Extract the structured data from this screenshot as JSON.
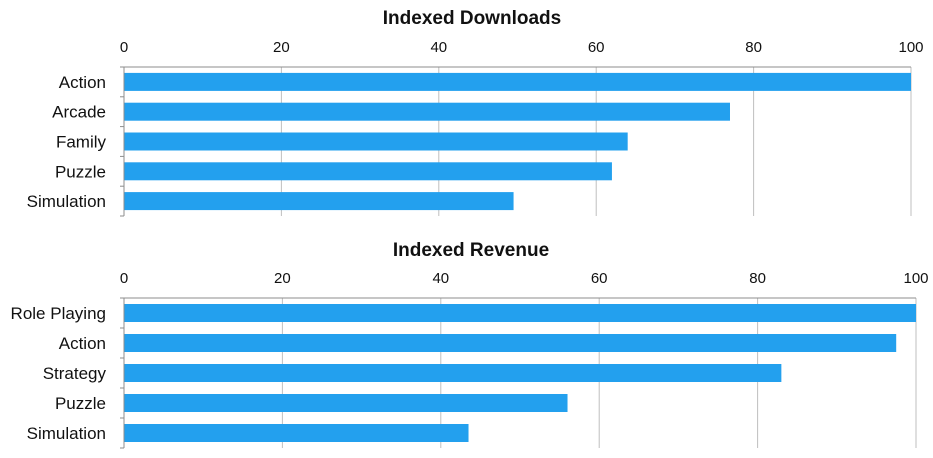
{
  "colors": {
    "bar": "#23a0ee",
    "grid": "#bfbfbf",
    "axis": "#8c8c8c"
  },
  "chart_data": [
    {
      "type": "bar",
      "orientation": "horizontal",
      "title": "Indexed Downloads",
      "categories": [
        "Action",
        "Arcade",
        "Family",
        "Puzzle",
        "Simulation"
      ],
      "values": [
        100,
        77,
        64,
        62,
        49.5
      ],
      "xlim": [
        0,
        100
      ],
      "ticks": [
        "0",
        "20",
        "40",
        "60",
        "80",
        "100"
      ],
      "tick_values": [
        0,
        20,
        40,
        60,
        80,
        100
      ],
      "xaxis_position": "top",
      "grid": true,
      "legend": "none"
    },
    {
      "type": "bar",
      "orientation": "horizontal",
      "title": "Indexed Revenue",
      "categories": [
        "Role Playing",
        "Action",
        "Strategy",
        "Puzzle",
        "Simulation"
      ],
      "values": [
        100,
        97.5,
        83,
        56,
        43.5
      ],
      "xlim": [
        0,
        100
      ],
      "ticks": [
        "0",
        "20",
        "40",
        "60",
        "80",
        "100"
      ],
      "tick_values": [
        0,
        20,
        40,
        60,
        80,
        100
      ],
      "xaxis_position": "top",
      "grid": true,
      "legend": "none"
    }
  ]
}
